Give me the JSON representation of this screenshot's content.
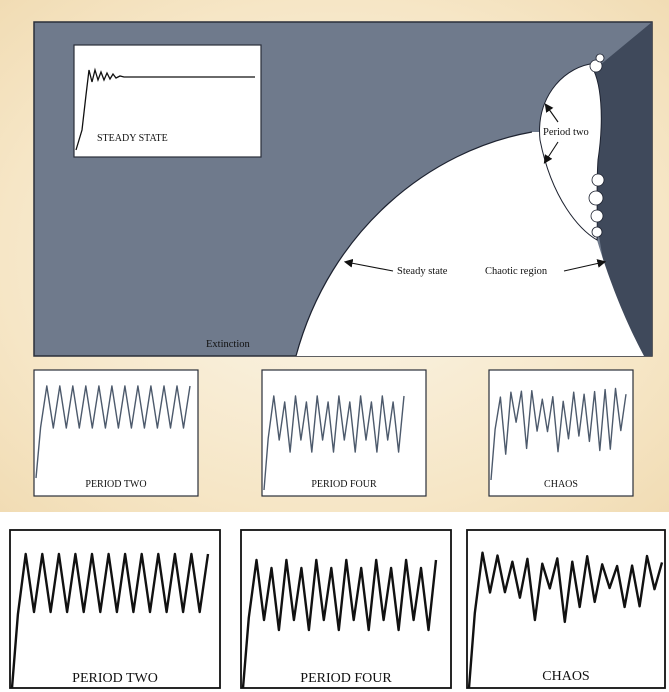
{
  "diagram": {
    "colors": {
      "panel_bg": "#f4e4c4",
      "plot_fill": "#6f7a8c",
      "chaos_fill": "#3f495b",
      "white_region": "#ffffff",
      "trace": "#4d5a6c"
    },
    "labels": {
      "extinction": "Extinction",
      "steady_state": "Steady state",
      "chaotic_region": "Chaotic region",
      "period_two": "Period two"
    },
    "inset": {
      "label": "STEADY STATE"
    },
    "panels": [
      {
        "label": "PERIOD TWO"
      },
      {
        "label": "PERIOD FOUR"
      },
      {
        "label": "CHAOS"
      }
    ]
  },
  "bottom": {
    "panels": [
      {
        "label": "PERIOD TWO"
      },
      {
        "label": "PERIOD FOUR"
      },
      {
        "label": "CHAOS"
      }
    ]
  }
}
